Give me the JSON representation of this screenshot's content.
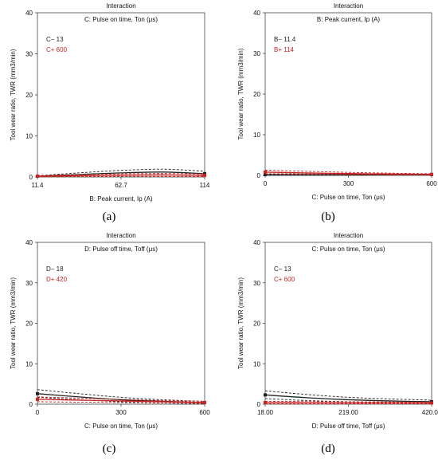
{
  "chart_data": [
    {
      "type": "line",
      "panel_label": "(a)",
      "header": "Interaction",
      "subtitle": "C: Pulse on time, Ton (μs)",
      "xlabel": "B: Peak current, Ip (A)",
      "ylabel": "Tool wear ratio, TWR (mm3/min)",
      "x_ticks": [
        "11.4",
        "62.7",
        "114"
      ],
      "y_ticks": [
        "0",
        "10",
        "20",
        "30",
        "40"
      ],
      "xlim": [
        11.4,
        114
      ],
      "ylim": [
        0,
        40
      ],
      "legend": [
        {
          "label": "C− 13",
          "color": "#222222"
        },
        {
          "label": "C+ 600",
          "color": "#cc2222"
        }
      ],
      "series": [
        {
          "name": "C− 13",
          "color": "#222222",
          "x": [
            11.4,
            37.05,
            62.7,
            88.35,
            114
          ],
          "mean": [
            0.2,
            0.6,
            1.0,
            1.2,
            0.8
          ],
          "upper": [
            0.3,
            1.0,
            1.6,
            1.9,
            1.4
          ],
          "lower": [
            0.1,
            0.25,
            0.45,
            0.55,
            0.3
          ]
        },
        {
          "name": "C+ 600",
          "color": "#cc2222",
          "x": [
            11.4,
            37.05,
            62.7,
            88.35,
            114
          ],
          "mean": [
            0.2,
            0.3,
            0.45,
            0.5,
            0.4
          ],
          "upper": [
            0.35,
            0.55,
            0.75,
            0.85,
            0.7
          ],
          "lower": [
            0.05,
            0.1,
            0.15,
            0.15,
            0.1
          ]
        }
      ]
    },
    {
      "type": "line",
      "panel_label": "(b)",
      "header": "Interaction",
      "subtitle": "B: Peak current, Ip (A)",
      "xlabel": "C: Pulse on time, Ton (μs)",
      "ylabel": "Tool wear ratio, TWR (mm3/min)",
      "x_ticks": [
        "0",
        "300",
        "600"
      ],
      "y_ticks": [
        "0",
        "10",
        "20",
        "30",
        "40"
      ],
      "xlim": [
        0,
        600
      ],
      "ylim": [
        0,
        40
      ],
      "legend": [
        {
          "label": "B− 11.4",
          "color": "#222222"
        },
        {
          "label": "B+ 114",
          "color": "#cc2222"
        }
      ],
      "series": [
        {
          "name": "B− 11.4",
          "color": "#222222",
          "x": [
            0,
            150,
            300,
            450,
            600
          ],
          "mean": [
            0.2,
            0.2,
            0.2,
            0.2,
            0.2
          ],
          "upper": [
            0.4,
            0.35,
            0.3,
            0.3,
            0.3
          ],
          "lower": [
            0.05,
            0.05,
            0.05,
            0.1,
            0.1
          ]
        },
        {
          "name": "B+ 114",
          "color": "#cc2222",
          "x": [
            0,
            150,
            300,
            450,
            600
          ],
          "mean": [
            0.8,
            0.6,
            0.45,
            0.35,
            0.25
          ],
          "upper": [
            1.3,
            1.0,
            0.75,
            0.55,
            0.4
          ],
          "lower": [
            0.4,
            0.3,
            0.2,
            0.15,
            0.1
          ]
        }
      ]
    },
    {
      "type": "line",
      "panel_label": "(c)",
      "header": "Interaction",
      "subtitle": "D: Pulse off time, Toff (μs)",
      "xlabel": "C: Pulse on time, Ton (μs)",
      "ylabel": "Tool wear ratio, TWR (mm3/min)",
      "x_ticks": [
        "0",
        "300",
        "600"
      ],
      "y_ticks": [
        "0",
        "10",
        "20",
        "30",
        "40"
      ],
      "xlim": [
        0,
        600
      ],
      "ylim": [
        0,
        40
      ],
      "legend": [
        {
          "label": "D− 18",
          "color": "#222222"
        },
        {
          "label": "D+ 420",
          "color": "#cc2222"
        }
      ],
      "series": [
        {
          "name": "D− 18",
          "color": "#222222",
          "x": [
            0,
            150,
            300,
            450,
            600
          ],
          "mean": [
            2.6,
            1.8,
            1.1,
            0.7,
            0.4
          ],
          "upper": [
            3.6,
            2.6,
            1.7,
            1.1,
            0.7
          ],
          "lower": [
            1.7,
            1.1,
            0.6,
            0.3,
            0.1
          ]
        },
        {
          "name": "D+ 420",
          "color": "#cc2222",
          "x": [
            0,
            150,
            300,
            450,
            600
          ],
          "mean": [
            1.2,
            1.0,
            0.8,
            0.6,
            0.4
          ],
          "upper": [
            1.8,
            1.5,
            1.2,
            0.9,
            0.7
          ],
          "lower": [
            0.6,
            0.5,
            0.4,
            0.3,
            0.2
          ]
        }
      ]
    },
    {
      "type": "line",
      "panel_label": "(d)",
      "header": "Interaction",
      "subtitle": "C: Pulse on time, Ton (μs)",
      "xlabel": "D: Pulse off time, Toff (μs)",
      "ylabel": "Tool wear ratio, TWR (mm3/min)",
      "x_ticks": [
        "18.00",
        "219.00",
        "420.00"
      ],
      "y_ticks": [
        "0",
        "10",
        "20",
        "30",
        "40"
      ],
      "xlim": [
        18,
        420
      ],
      "ylim": [
        0,
        40
      ],
      "legend": [
        {
          "label": "C− 13",
          "color": "#222222"
        },
        {
          "label": "C+ 600",
          "color": "#cc2222"
        }
      ],
      "series": [
        {
          "name": "C− 13",
          "color": "#222222",
          "x": [
            18,
            118.5,
            219,
            319.5,
            420
          ],
          "mean": [
            2.3,
            1.6,
            1.1,
            0.8,
            0.6
          ],
          "upper": [
            3.3,
            2.4,
            1.7,
            1.3,
            1.0
          ],
          "lower": [
            1.4,
            0.9,
            0.6,
            0.4,
            0.3
          ]
        },
        {
          "name": "C+ 600",
          "color": "#cc2222",
          "x": [
            18,
            118.5,
            219,
            319.5,
            420
          ],
          "mean": [
            0.4,
            0.4,
            0.35,
            0.35,
            0.3
          ],
          "upper": [
            0.7,
            0.65,
            0.6,
            0.55,
            0.5
          ],
          "lower": [
            0.1,
            0.1,
            0.1,
            0.1,
            0.1
          ]
        }
      ]
    }
  ]
}
